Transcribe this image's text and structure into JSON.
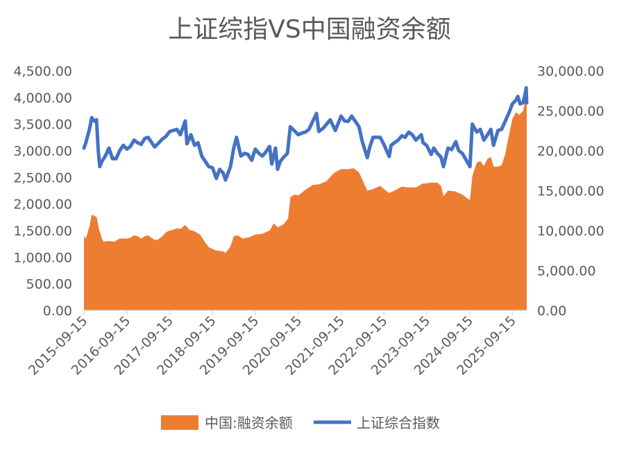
{
  "chart_data": {
    "type": "line",
    "title": "上证综指VS中国融资余额",
    "left_axis": {
      "ticks": [
        "0.00",
        "500.00",
        "1,000.00",
        "1,500.00",
        "2,000.00",
        "2,500.00",
        "3,000.00",
        "3,500.00",
        "4,000.00",
        "4,500.00"
      ],
      "ylim": [
        0,
        4500
      ]
    },
    "right_axis": {
      "ticks": [
        "0.00",
        "5,000.00",
        "10,000.00",
        "15,000.00",
        "20,000.00",
        "25,000.00",
        "30,000.00"
      ],
      "ylim": [
        0,
        30000
      ]
    },
    "x_ticks": [
      "2015-09-15",
      "2016-09-15",
      "2017-09-15",
      "2018-09-15",
      "2019-09-15",
      "2020-09-15",
      "2021-09-15",
      "2022-09-15",
      "2023-09-15",
      "2024-09-15",
      "2025-09-15"
    ],
    "x_range": [
      "2015-09-15",
      "2026-01-15"
    ],
    "legend_position": "bottom",
    "series": [
      {
        "name": "中国:融资余额",
        "kind": "area",
        "axis": "right",
        "color": "#ED7D31",
        "points": [
          [
            "2015-09-15",
            9300
          ],
          [
            "2015-10-01",
            9000
          ],
          [
            "2015-11-01",
            10500
          ],
          [
            "2015-11-20",
            12000
          ],
          [
            "2015-12-15",
            11800
          ],
          [
            "2016-01-01",
            11700
          ],
          [
            "2016-01-20",
            10200
          ],
          [
            "2016-02-15",
            9000
          ],
          [
            "2016-03-01",
            8600
          ],
          [
            "2016-04-15",
            8700
          ],
          [
            "2016-06-01",
            8600
          ],
          [
            "2016-07-15",
            9000
          ],
          [
            "2016-08-15",
            9000
          ],
          [
            "2016-09-15",
            9000
          ],
          [
            "2016-10-15",
            9100
          ],
          [
            "2016-11-15",
            9400
          ],
          [
            "2016-12-15",
            9300
          ],
          [
            "2017-01-15",
            9000
          ],
          [
            "2017-02-15",
            9300
          ],
          [
            "2017-03-15",
            9400
          ],
          [
            "2017-05-01",
            8900
          ],
          [
            "2017-06-01",
            8800
          ],
          [
            "2017-07-15",
            9300
          ],
          [
            "2017-08-15",
            9800
          ],
          [
            "2017-09-15",
            10000
          ],
          [
            "2017-10-15",
            10100
          ],
          [
            "2017-11-15",
            10300
          ],
          [
            "2017-12-15",
            10200
          ],
          [
            "2018-01-25",
            10700
          ],
          [
            "2018-03-01",
            10100
          ],
          [
            "2018-04-15",
            9900
          ],
          [
            "2018-06-01",
            9500
          ],
          [
            "2018-07-15",
            8500
          ],
          [
            "2018-08-15",
            7900
          ],
          [
            "2018-09-15",
            7700
          ],
          [
            "2018-10-15",
            7500
          ],
          [
            "2018-12-15",
            7400
          ],
          [
            "2019-01-04",
            7200
          ],
          [
            "2019-02-15",
            8000
          ],
          [
            "2019-03-15",
            9300
          ],
          [
            "2019-04-15",
            9400
          ],
          [
            "2019-06-01",
            9000
          ],
          [
            "2019-08-01",
            9200
          ],
          [
            "2019-09-15",
            9500
          ],
          [
            "2019-11-15",
            9600
          ],
          [
            "2020-01-15",
            10000
          ],
          [
            "2020-02-20",
            10900
          ],
          [
            "2020-03-25",
            10400
          ],
          [
            "2020-05-15",
            10800
          ],
          [
            "2020-06-20",
            11500
          ],
          [
            "2020-07-10",
            14200
          ],
          [
            "2020-08-15",
            14500
          ],
          [
            "2020-09-15",
            14400
          ],
          [
            "2020-11-15",
            15100
          ],
          [
            "2021-01-15",
            15700
          ],
          [
            "2021-03-15",
            15800
          ],
          [
            "2021-05-15",
            16200
          ],
          [
            "2021-07-15",
            17200
          ],
          [
            "2021-09-15",
            17700
          ],
          [
            "2021-11-15",
            17700
          ],
          [
            "2021-12-31",
            17800
          ],
          [
            "2022-02-15",
            17300
          ],
          [
            "2022-04-27",
            15000
          ],
          [
            "2022-06-15",
            15200
          ],
          [
            "2022-08-15",
            15600
          ],
          [
            "2022-09-15",
            15200
          ],
          [
            "2022-10-31",
            14700
          ],
          [
            "2022-12-15",
            15000
          ],
          [
            "2023-02-15",
            15500
          ],
          [
            "2023-04-15",
            15400
          ],
          [
            "2023-06-15",
            15400
          ],
          [
            "2023-08-15",
            15900
          ],
          [
            "2023-09-15",
            15900
          ],
          [
            "2023-10-15",
            16000
          ],
          [
            "2023-12-15",
            16000
          ],
          [
            "2024-01-15",
            15600
          ],
          [
            "2024-02-06",
            14300
          ],
          [
            "2024-03-15",
            15000
          ],
          [
            "2024-05-15",
            14900
          ],
          [
            "2024-07-15",
            14500
          ],
          [
            "2024-09-18",
            13800
          ],
          [
            "2024-10-08",
            16800
          ],
          [
            "2024-11-15",
            18500
          ],
          [
            "2024-12-15",
            18700
          ],
          [
            "2025-01-15",
            18100
          ],
          [
            "2025-02-15",
            19000
          ],
          [
            "2025-03-15",
            19200
          ],
          [
            "2025-04-09",
            18000
          ],
          [
            "2025-05-15",
            18000
          ],
          [
            "2025-06-15",
            18200
          ],
          [
            "2025-07-15",
            19500
          ],
          [
            "2025-08-15",
            21800
          ],
          [
            "2025-09-15",
            24000
          ],
          [
            "2025-10-15",
            24800
          ],
          [
            "2025-11-15",
            24500
          ],
          [
            "2025-12-15",
            25000
          ],
          [
            "2026-01-05",
            26500
          ],
          [
            "2026-01-15",
            25800
          ]
        ]
      },
      {
        "name": "上证综合指数",
        "kind": "line",
        "axis": "left",
        "color": "#4472C4",
        "points": [
          [
            "2015-09-15",
            3050
          ],
          [
            "2015-10-01",
            3150
          ],
          [
            "2015-11-01",
            3400
          ],
          [
            "2015-11-20",
            3620
          ],
          [
            "2015-12-15",
            3550
          ],
          [
            "2015-12-31",
            3580
          ],
          [
            "2016-01-15",
            3000
          ],
          [
            "2016-01-28",
            2700
          ],
          [
            "2016-02-15",
            2800
          ],
          [
            "2016-03-15",
            2900
          ],
          [
            "2016-04-15",
            3050
          ],
          [
            "2016-05-15",
            2850
          ],
          [
            "2016-06-15",
            2850
          ],
          [
            "2016-07-15",
            3000
          ],
          [
            "2016-08-15",
            3100
          ],
          [
            "2016-09-15",
            3030
          ],
          [
            "2016-10-15",
            3080
          ],
          [
            "2016-11-15",
            3200
          ],
          [
            "2016-12-15",
            3150
          ],
          [
            "2017-01-15",
            3120
          ],
          [
            "2017-02-15",
            3230
          ],
          [
            "2017-03-15",
            3250
          ],
          [
            "2017-05-10",
            3070
          ],
          [
            "2017-06-15",
            3150
          ],
          [
            "2017-07-15",
            3220
          ],
          [
            "2017-08-15",
            3270
          ],
          [
            "2017-09-15",
            3360
          ],
          [
            "2017-10-15",
            3380
          ],
          [
            "2017-11-15",
            3400
          ],
          [
            "2017-12-15",
            3300
          ],
          [
            "2018-01-25",
            3560
          ],
          [
            "2018-02-09",
            3130
          ],
          [
            "2018-03-15",
            3300
          ],
          [
            "2018-04-15",
            3100
          ],
          [
            "2018-05-15",
            3150
          ],
          [
            "2018-06-15",
            2900
          ],
          [
            "2018-07-15",
            2800
          ],
          [
            "2018-08-15",
            2700
          ],
          [
            "2018-09-15",
            2680
          ],
          [
            "2018-10-18",
            2480
          ],
          [
            "2018-11-15",
            2650
          ],
          [
            "2018-12-15",
            2580
          ],
          [
            "2019-01-04",
            2450
          ],
          [
            "2019-02-15",
            2700
          ],
          [
            "2019-03-15",
            3050
          ],
          [
            "2019-04-08",
            3250
          ],
          [
            "2019-05-15",
            2900
          ],
          [
            "2019-06-15",
            2950
          ],
          [
            "2019-07-15",
            2930
          ],
          [
            "2019-08-15",
            2820
          ],
          [
            "2019-09-15",
            3030
          ],
          [
            "2019-10-15",
            2950
          ],
          [
            "2019-11-15",
            2900
          ],
          [
            "2019-12-15",
            2980
          ],
          [
            "2020-01-15",
            3080
          ],
          [
            "2020-02-03",
            2750
          ],
          [
            "2020-03-05",
            3050
          ],
          [
            "2020-03-23",
            2650
          ],
          [
            "2020-04-15",
            2800
          ],
          [
            "2020-05-15",
            2880
          ],
          [
            "2020-06-15",
            2950
          ],
          [
            "2020-07-09",
            3450
          ],
          [
            "2020-08-15",
            3370
          ],
          [
            "2020-09-15",
            3300
          ],
          [
            "2020-10-15",
            3330
          ],
          [
            "2020-11-15",
            3350
          ],
          [
            "2020-12-15",
            3400
          ],
          [
            "2021-02-18",
            3700
          ],
          [
            "2021-03-09",
            3360
          ],
          [
            "2021-04-15",
            3420
          ],
          [
            "2021-05-15",
            3500
          ],
          [
            "2021-06-15",
            3580
          ],
          [
            "2021-07-28",
            3380
          ],
          [
            "2021-09-15",
            3650
          ],
          [
            "2021-10-15",
            3560
          ],
          [
            "2021-11-15",
            3550
          ],
          [
            "2021-12-15",
            3650
          ],
          [
            "2022-01-15",
            3550
          ],
          [
            "2022-02-15",
            3450
          ],
          [
            "2022-03-15",
            3170
          ],
          [
            "2022-04-27",
            2870
          ],
          [
            "2022-05-15",
            3050
          ],
          [
            "2022-06-15",
            3250
          ],
          [
            "2022-07-15",
            3250
          ],
          [
            "2022-08-15",
            3250
          ],
          [
            "2022-09-15",
            3120
          ],
          [
            "2022-10-31",
            2890
          ],
          [
            "2022-11-15",
            3100
          ],
          [
            "2022-12-15",
            3150
          ],
          [
            "2023-01-15",
            3200
          ],
          [
            "2023-02-15",
            3280
          ],
          [
            "2023-03-15",
            3250
          ],
          [
            "2023-04-15",
            3350
          ],
          [
            "2023-05-15",
            3300
          ],
          [
            "2023-06-15",
            3200
          ],
          [
            "2023-07-31",
            3300
          ],
          [
            "2023-08-15",
            3150
          ],
          [
            "2023-09-15",
            3100
          ],
          [
            "2023-10-23",
            2930
          ],
          [
            "2023-11-15",
            3050
          ],
          [
            "2023-12-15",
            2950
          ],
          [
            "2024-01-15",
            2880
          ],
          [
            "2024-02-05",
            2700
          ],
          [
            "2024-03-15",
            3050
          ],
          [
            "2024-04-15",
            3020
          ],
          [
            "2024-05-20",
            3170
          ],
          [
            "2024-06-15",
            3000
          ],
          [
            "2024-07-15",
            2950
          ],
          [
            "2024-09-18",
            2700
          ],
          [
            "2024-10-08",
            3500
          ],
          [
            "2024-11-15",
            3350
          ],
          [
            "2024-12-15",
            3400
          ],
          [
            "2025-01-15",
            3200
          ],
          [
            "2025-02-15",
            3300
          ],
          [
            "2025-03-15",
            3400
          ],
          [
            "2025-04-07",
            3100
          ],
          [
            "2025-05-15",
            3380
          ],
          [
            "2025-06-15",
            3400
          ],
          [
            "2025-07-15",
            3550
          ],
          [
            "2025-08-15",
            3700
          ],
          [
            "2025-09-15",
            3880
          ],
          [
            "2025-10-15",
            3950
          ],
          [
            "2025-11-01",
            4020
          ],
          [
            "2025-11-20",
            3880
          ],
          [
            "2025-12-15",
            3900
          ],
          [
            "2026-01-05",
            4100
          ],
          [
            "2026-01-10",
            4180
          ],
          [
            "2026-01-15",
            3900
          ]
        ]
      }
    ]
  }
}
